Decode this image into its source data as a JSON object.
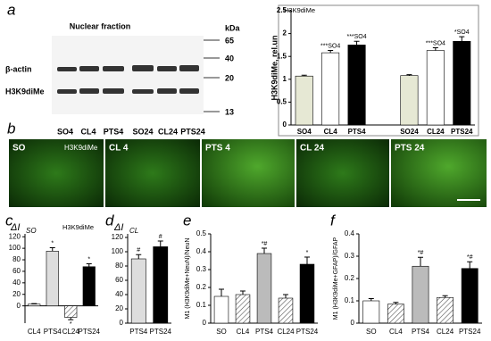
{
  "panel_labels": [
    "a",
    "b",
    "c",
    "d",
    "e",
    "f"
  ],
  "blot": {
    "title": "Nuclear fraction",
    "unit": "kDa",
    "markers": [
      "65",
      "40",
      "20",
      "13"
    ],
    "rows": [
      "β-actin",
      "H3K9diMe"
    ],
    "lanes": [
      "SO4",
      "CL4",
      "PTS4",
      "SO24",
      "CL24",
      "PTS24"
    ]
  },
  "images": [
    {
      "label": "SO",
      "stain": "H3K9diMe"
    },
    {
      "label": "CL 4"
    },
    {
      "label": "PTS 4"
    },
    {
      "label": "CL 24"
    },
    {
      "label": "PTS 24"
    }
  ],
  "chart_data": [
    {
      "type": "bar",
      "title": "H3K9diMe",
      "ylabel": "H3K9diMe, rel.un",
      "categories": [
        "SO4",
        "CL4",
        "PTS4",
        "SO24",
        "CL24",
        "PTS24"
      ],
      "values": [
        1.07,
        1.58,
        1.75,
        1.08,
        1.63,
        1.83
      ],
      "errors": [
        0.02,
        0.05,
        0.08,
        0.02,
        0.06,
        0.1
      ],
      "fills": [
        "#e6e8d4",
        "#ffffff",
        "#000000",
        "#e6e8d4",
        "#ffffff",
        "#000000"
      ],
      "annotations": [
        null,
        "***SO4",
        "***SO4",
        null,
        "***SO4",
        "*SO4"
      ],
      "ylim": [
        0,
        2.5
      ],
      "yticks": [
        0,
        0.5,
        1,
        1.5,
        2,
        2.5
      ]
    },
    {
      "type": "bar",
      "title": "H3K9diMe",
      "ylabel": "ΔI",
      "ylabel_sub": "SO",
      "categories": [
        "CL4",
        "PTS4",
        "CL24",
        "PTS24"
      ],
      "values": [
        3,
        95,
        -20,
        68
      ],
      "errors": [
        1,
        6,
        4,
        5
      ],
      "fills": [
        "#ffffff",
        "#dddddd",
        "hatch",
        "#000000"
      ],
      "annotations": [
        null,
        "*",
        "*",
        "*"
      ],
      "ylim": [
        -30,
        125
      ],
      "yticks": [
        0,
        20,
        40,
        60,
        80,
        100,
        120
      ]
    },
    {
      "type": "bar",
      "ylabel": "ΔI",
      "ylabel_sub": "CL",
      "categories": [
        "PTS4",
        "PTS24"
      ],
      "values": [
        90,
        107
      ],
      "errors": [
        6,
        8
      ],
      "fills": [
        "#dddddd",
        "#000000"
      ],
      "annotations": [
        "#",
        "#"
      ],
      "ylim": [
        0,
        125
      ],
      "yticks": [
        0,
        20,
        40,
        60,
        80,
        100,
        120
      ]
    },
    {
      "type": "bar",
      "ylabel": "M1 (H3K9diMe+NeuN)/NeuN",
      "categories": [
        "SO",
        "CL4",
        "PTS4",
        "CL24",
        "PTS24"
      ],
      "values": [
        0.15,
        0.16,
        0.39,
        0.14,
        0.33
      ],
      "errors": [
        0.04,
        0.02,
        0.03,
        0.02,
        0.04
      ],
      "fills": [
        "#ffffff",
        "hatch",
        "#bbbbbb",
        "hatch",
        "#000000"
      ],
      "annotations": [
        null,
        null,
        "*#",
        null,
        "*"
      ],
      "ylim": [
        0,
        0.5
      ],
      "yticks": [
        0,
        0.1,
        0.2,
        0.3,
        0.4,
        0.5
      ]
    },
    {
      "type": "bar",
      "ylabel": "M1 (H3K9diMe+GFAP)/GFAP",
      "categories": [
        "SO",
        "CL4",
        "PTS4",
        "CL24",
        "PTS24"
      ],
      "values": [
        0.1,
        0.085,
        0.255,
        0.115,
        0.245
      ],
      "errors": [
        0.01,
        0.008,
        0.04,
        0.008,
        0.03
      ],
      "fills": [
        "#ffffff",
        "hatch",
        "#bbbbbb",
        "hatch",
        "#000000"
      ],
      "annotations": [
        null,
        null,
        "*#",
        null,
        "*#"
      ],
      "ylim": [
        0,
        0.4
      ],
      "yticks": [
        0,
        0.1,
        0.2,
        0.3,
        0.4
      ]
    }
  ]
}
